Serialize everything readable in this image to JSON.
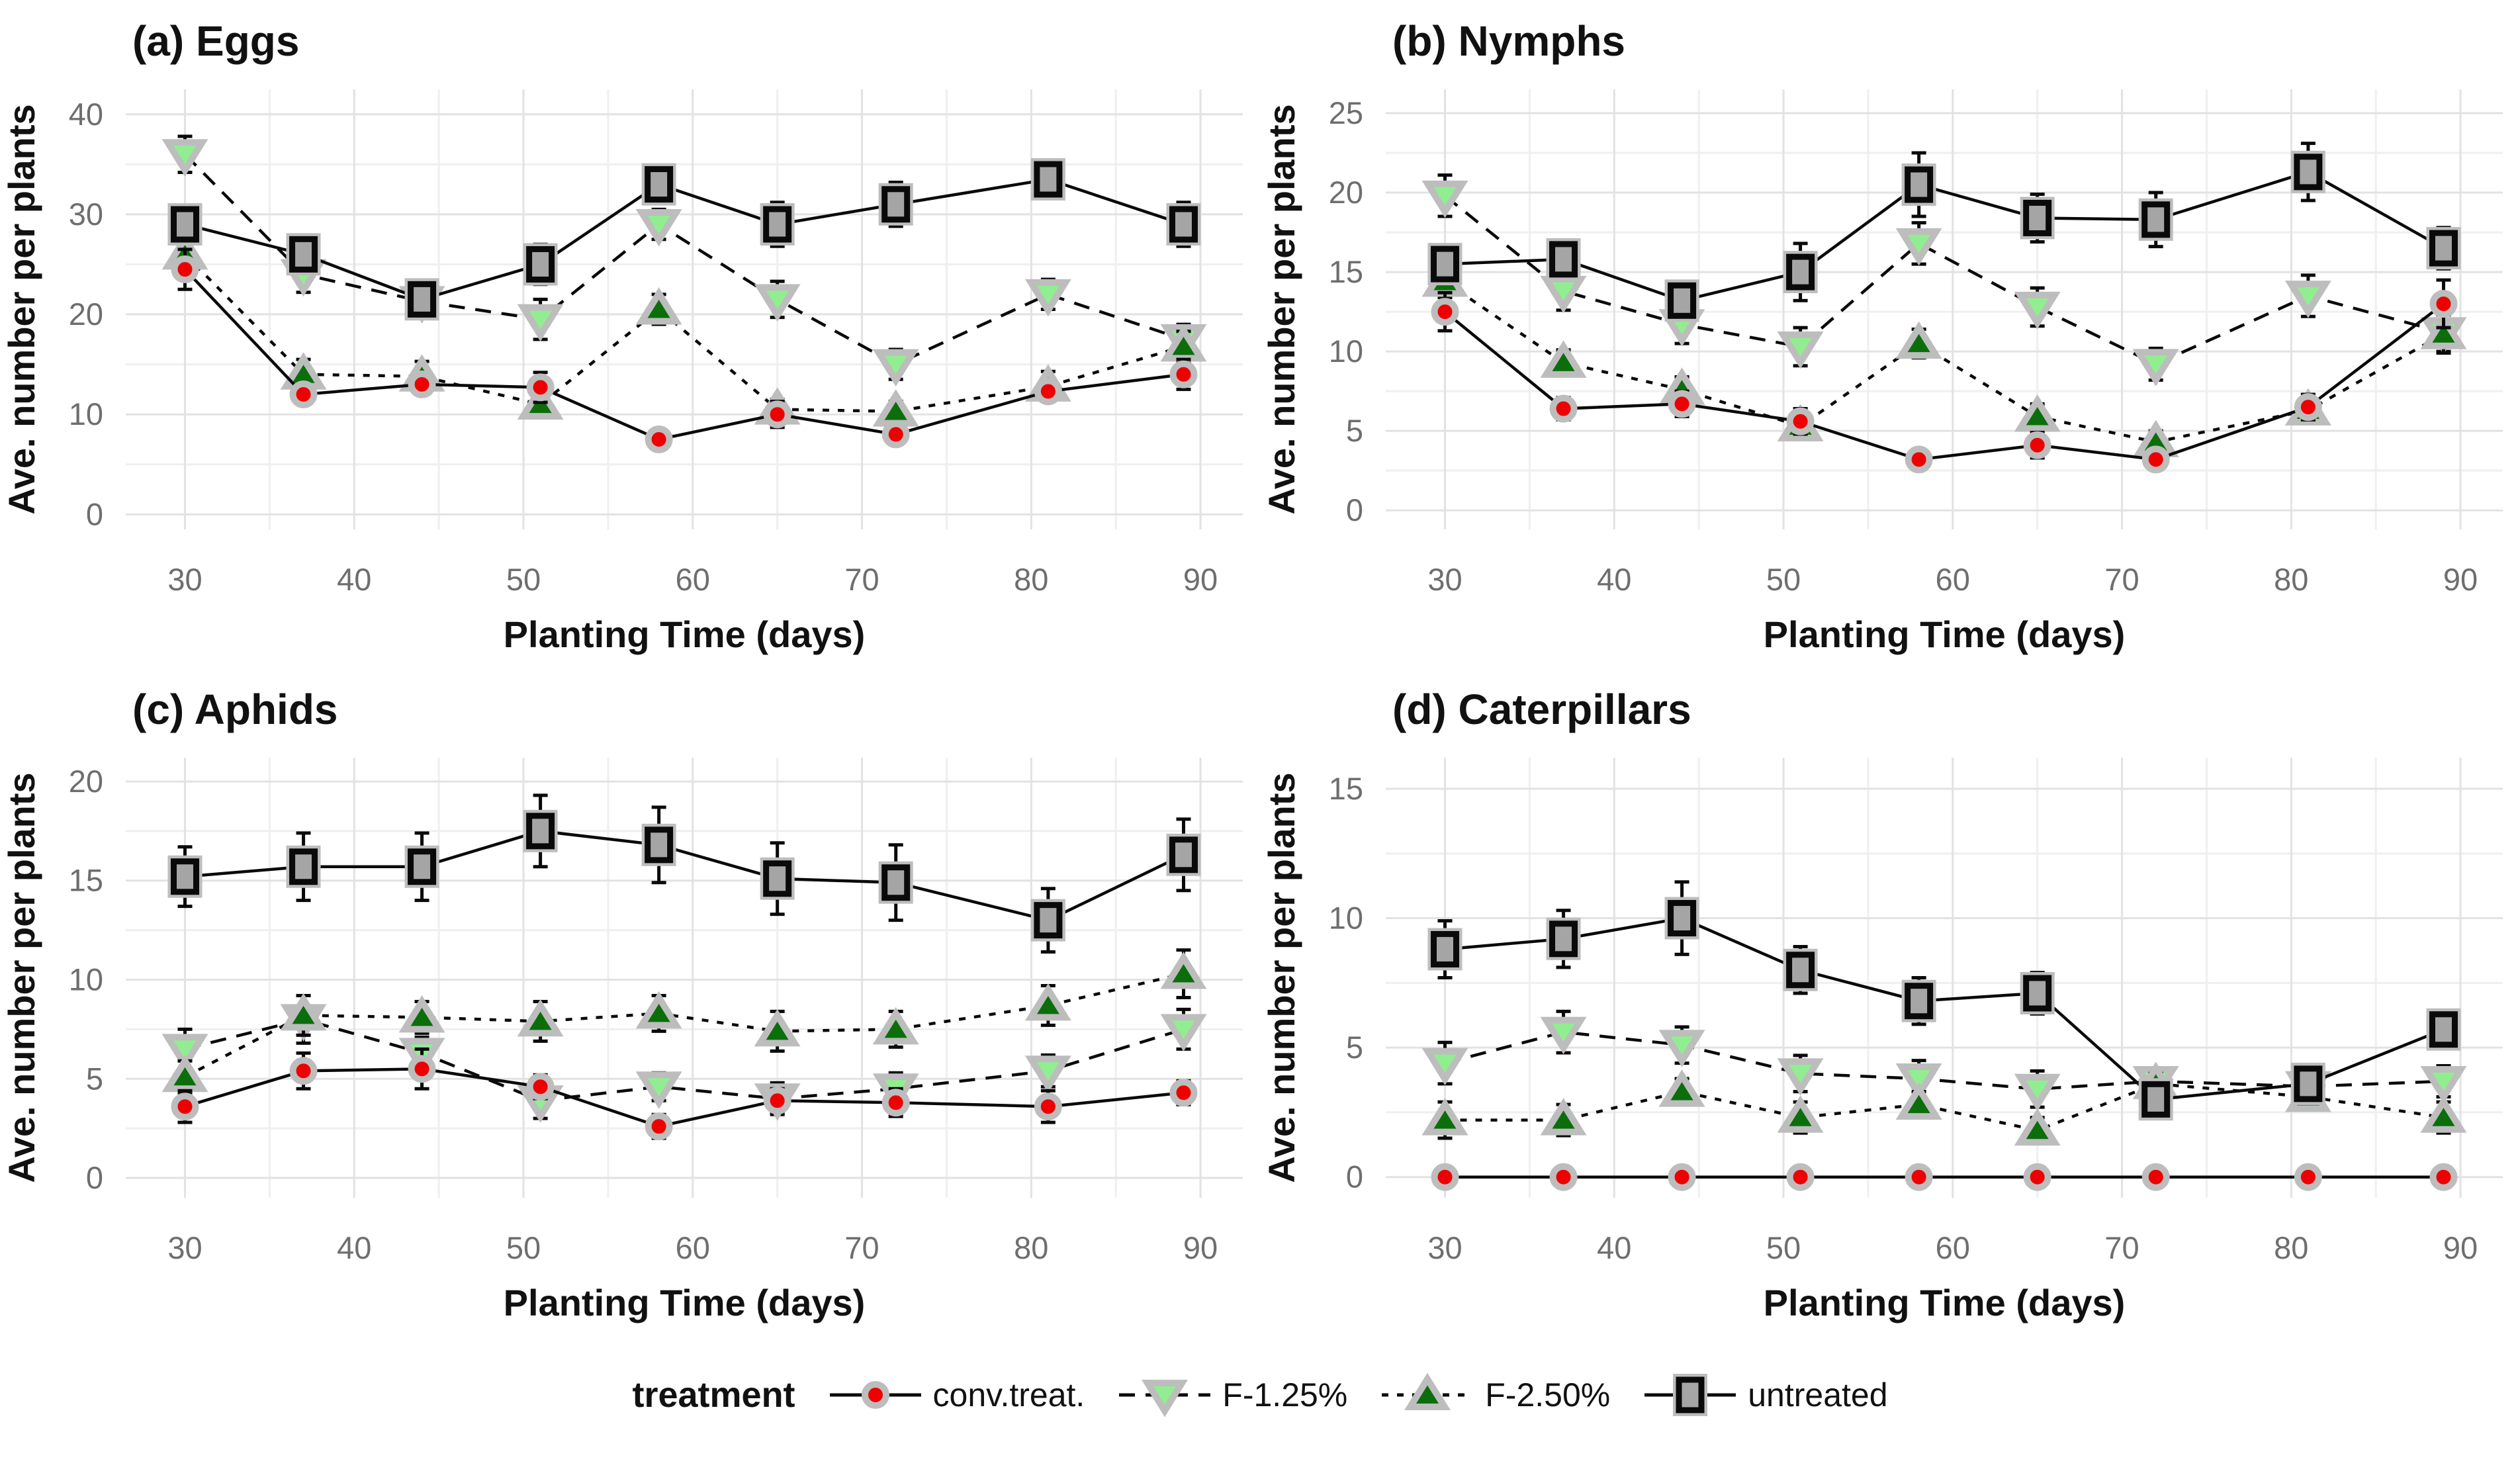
{
  "figure": {
    "legend": {
      "title": "treatment",
      "items": [
        {
          "label": "conv.treat.",
          "marker": "circle",
          "fill": "#EE0000",
          "line": "solid"
        },
        {
          "label": "F-1.25%",
          "marker": "triangle-down",
          "fill": "#90EE90",
          "line": "dashed"
        },
        {
          "label": "F-2.50%",
          "marker": "triangle-up",
          "fill": "#0B6E0B",
          "line": "dashed-short"
        },
        {
          "label": "untreated",
          "marker": "square",
          "fill": "#A5A5A5",
          "line": "solid"
        }
      ]
    },
    "colors": {
      "series_line": "#0a0a0a",
      "marker_halo": "#BDBDBD",
      "grid_major": "#E2E2E2",
      "grid_minor": "#EFEFEF",
      "tick_label": "#6e6e6e",
      "text": "#111111"
    }
  },
  "chart_data": [
    {
      "type": "line",
      "id": "a",
      "title": "(a) Eggs",
      "xlabel": "Planting Time (days)",
      "ylabel": "Ave. number per plants",
      "x": [
        30,
        37,
        44,
        51,
        58,
        65,
        72,
        81,
        89
      ],
      "xticks": [
        30,
        40,
        50,
        60,
        70,
        80,
        90
      ],
      "xlim": [
        26.5,
        92.5
      ],
      "ylim": [
        -1.5,
        42.5
      ],
      "yticks": [
        0,
        10,
        20,
        30,
        40
      ],
      "legend_position": "bottom",
      "grid": true,
      "series": [
        {
          "name": "conv.treat.",
          "values": [
            24.5,
            12.0,
            13.0,
            12.7,
            7.5,
            10.0,
            8.0,
            12.3,
            14.0
          ],
          "errors": [
            2.0,
            1.0,
            1.0,
            1.5,
            1.0,
            1.3,
            1.0,
            1.0,
            1.5
          ]
        },
        {
          "name": "F-1.25%",
          "values": [
            36.0,
            24.0,
            21.3,
            19.5,
            29.0,
            21.5,
            15.0,
            22.0,
            17.5
          ],
          "errors": [
            1.8,
            1.8,
            1.5,
            2.0,
            1.5,
            1.8,
            1.5,
            1.5,
            1.5
          ]
        },
        {
          "name": "F-2.50%",
          "values": [
            26.0,
            14.0,
            13.8,
            11.0,
            20.5,
            10.5,
            10.3,
            12.8,
            16.8
          ],
          "errors": [
            1.5,
            1.5,
            1.5,
            1.0,
            1.5,
            1.0,
            1.0,
            1.5,
            1.5
          ]
        },
        {
          "name": "untreated",
          "values": [
            29.0,
            26.0,
            21.5,
            25.0,
            33.0,
            29.0,
            31.0,
            33.5,
            29.0
          ],
          "errors": [
            1.5,
            1.7,
            1.5,
            2.0,
            1.5,
            2.2,
            2.2,
            1.7,
            2.2
          ]
        }
      ]
    },
    {
      "type": "line",
      "id": "b",
      "title": "(b) Nymphs",
      "xlabel": "Planting Time (days)",
      "ylabel": "Ave. number per plants",
      "x": [
        30,
        37,
        44,
        51,
        58,
        65,
        72,
        81,
        89
      ],
      "xticks": [
        30,
        40,
        50,
        60,
        70,
        80,
        90
      ],
      "xlim": [
        26.5,
        92.5
      ],
      "ylim": [
        -1.2,
        26.5
      ],
      "yticks": [
        0,
        5,
        10,
        15,
        20,
        25
      ],
      "legend_position": "bottom",
      "grid": true,
      "series": [
        {
          "name": "conv.treat.",
          "values": [
            12.5,
            6.4,
            6.7,
            5.6,
            3.2,
            4.1,
            3.2,
            6.5,
            13.0
          ],
          "errors": [
            1.2,
            0.7,
            0.8,
            0.8,
            0.6,
            0.8,
            0.6,
            0.8,
            1.5
          ]
        },
        {
          "name": "F-1.25%",
          "values": [
            19.8,
            13.8,
            11.7,
            10.3,
            16.8,
            12.8,
            9.2,
            13.5,
            11.2
          ],
          "errors": [
            1.3,
            1.2,
            1.2,
            1.2,
            1.3,
            1.2,
            1.0,
            1.3,
            1.2
          ]
        },
        {
          "name": "F-2.50%",
          "values": [
            14.4,
            9.3,
            7.6,
            5.3,
            10.5,
            5.9,
            4.3,
            6.3,
            11.1
          ],
          "errors": [
            1.0,
            0.8,
            0.8,
            0.7,
            0.9,
            0.8,
            0.7,
            0.8,
            1.2
          ]
        },
        {
          "name": "untreated",
          "values": [
            15.5,
            15.8,
            13.2,
            15.0,
            20.5,
            18.4,
            18.3,
            21.3,
            16.5
          ],
          "errors": [
            1.2,
            1.2,
            1.2,
            1.8,
            2.0,
            1.5,
            1.7,
            1.8,
            1.3
          ]
        }
      ]
    },
    {
      "type": "line",
      "id": "c",
      "title": "(c) Aphids",
      "xlabel": "Planting Time (days)",
      "ylabel": "Ave. number per plants",
      "x": [
        30,
        37,
        44,
        51,
        58,
        65,
        72,
        81,
        89
      ],
      "xticks": [
        30,
        40,
        50,
        60,
        70,
        80,
        90
      ],
      "xlim": [
        26.5,
        92.5
      ],
      "ylim": [
        -1.0,
        21.2
      ],
      "yticks": [
        0,
        5,
        10,
        15,
        20
      ],
      "legend_position": "bottom",
      "grid": true,
      "series": [
        {
          "name": "conv.treat.",
          "values": [
            3.6,
            5.4,
            5.5,
            4.6,
            2.6,
            3.9,
            3.8,
            3.6,
            4.3
          ],
          "errors": [
            0.8,
            0.9,
            1.0,
            0.6,
            0.6,
            0.6,
            0.7,
            0.8,
            0.6
          ]
        },
        {
          "name": "F-1.25%",
          "values": [
            6.5,
            8.0,
            6.3,
            3.9,
            4.6,
            4.0,
            4.5,
            5.4,
            7.5
          ],
          "errors": [
            1.0,
            1.2,
            0.8,
            0.9,
            0.7,
            0.8,
            0.8,
            0.8,
            1.0
          ]
        },
        {
          "name": "F-2.50%",
          "values": [
            5.1,
            8.2,
            8.1,
            7.9,
            8.3,
            7.4,
            7.5,
            8.7,
            10.3
          ],
          "errors": [
            0.8,
            1.0,
            0.8,
            1.0,
            0.9,
            1.0,
            0.9,
            1.0,
            1.2
          ]
        },
        {
          "name": "untreated",
          "values": [
            15.2,
            15.7,
            15.7,
            17.5,
            16.8,
            15.1,
            14.9,
            13.0,
            16.3
          ],
          "errors": [
            1.5,
            1.7,
            1.7,
            1.8,
            1.9,
            1.8,
            1.9,
            1.6,
            1.8
          ]
        }
      ]
    },
    {
      "type": "line",
      "id": "d",
      "title": "(d) Caterpillars",
      "xlabel": "Planting Time (days)",
      "ylabel": "Ave. number per plants",
      "x": [
        30,
        37,
        44,
        51,
        58,
        65,
        72,
        81,
        89
      ],
      "xticks": [
        30,
        40,
        50,
        60,
        70,
        80,
        90
      ],
      "xlim": [
        26.5,
        92.5
      ],
      "ylim": [
        -0.8,
        16.2
      ],
      "yticks": [
        0,
        5,
        10,
        15
      ],
      "legend_position": "bottom",
      "grid": true,
      "series": [
        {
          "name": "conv.treat.",
          "values": [
            0,
            0,
            0,
            0,
            0,
            0,
            0,
            0,
            0
          ],
          "errors": [
            0.3,
            0.3,
            0.3,
            0.3,
            0.3,
            0.3,
            0.3,
            0.3,
            0.3
          ]
        },
        {
          "name": "F-1.25%",
          "values": [
            4.4,
            5.6,
            5.1,
            4.0,
            3.8,
            3.4,
            3.7,
            3.5,
            3.7
          ],
          "errors": [
            0.8,
            0.8,
            0.7,
            0.7,
            0.7,
            0.7,
            0.5,
            0.5,
            0.6
          ]
        },
        {
          "name": "F-2.50%",
          "values": [
            2.2,
            2.2,
            3.3,
            2.3,
            2.8,
            1.8,
            3.6,
            3.1,
            2.3
          ],
          "errors": [
            0.7,
            0.6,
            0.5,
            0.6,
            0.5,
            0.5,
            0.4,
            0.4,
            0.6
          ]
        },
        {
          "name": "untreated",
          "values": [
            8.8,
            9.2,
            10.0,
            8.0,
            6.8,
            7.1,
            3.0,
            3.6,
            5.7
          ],
          "errors": [
            1.1,
            1.1,
            1.4,
            0.9,
            0.9,
            0.8,
            0.7,
            0.5,
            0.7
          ]
        }
      ]
    }
  ]
}
